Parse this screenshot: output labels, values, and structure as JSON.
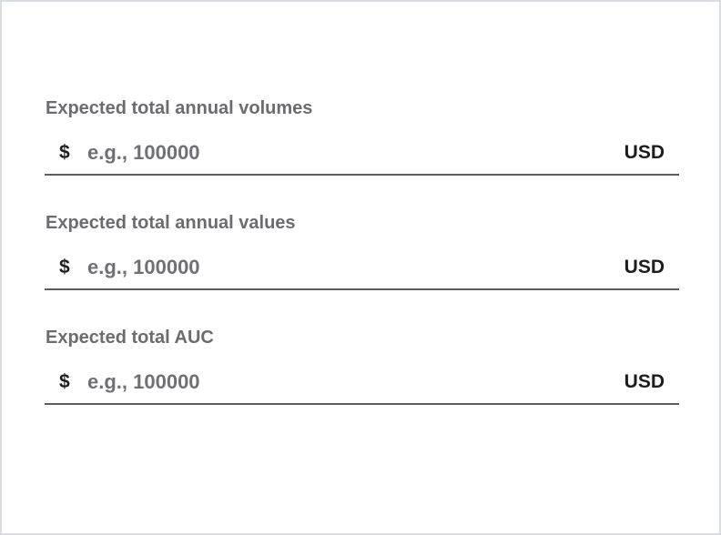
{
  "form": {
    "fields": [
      {
        "label": "Expected total annual volumes",
        "prefix": "$",
        "placeholder": "e.g., 100000",
        "value": "",
        "suffix": "USD"
      },
      {
        "label": "Expected total annual values",
        "prefix": "$",
        "placeholder": "e.g., 100000",
        "value": "",
        "suffix": "USD"
      },
      {
        "label": "Expected total AUC",
        "prefix": "$",
        "placeholder": "e.g., 100000",
        "value": "",
        "suffix": "USD"
      }
    ]
  },
  "colors": {
    "label": "#6b6c70",
    "text": "#1d1d1f",
    "placeholder": "#6f7075",
    "underline": "#5c5c5e",
    "frame_border": "#d9dce1",
    "background": "#ffffff"
  }
}
